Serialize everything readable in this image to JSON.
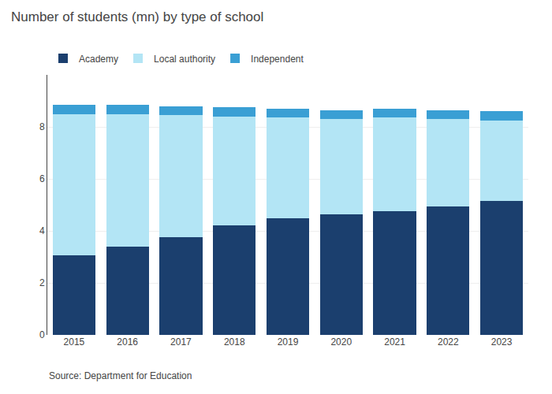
{
  "chart_data": {
    "type": "bar",
    "stacked": true,
    "title": "Number of students (mn) by type of school",
    "source": "Source: Department for Education",
    "categories": [
      "2015",
      "2016",
      "2017",
      "2018",
      "2019",
      "2020",
      "2021",
      "2022",
      "2023"
    ],
    "series": [
      {
        "name": "Academy",
        "color": "#1b3f6e",
        "values": [
          3.05,
          3.4,
          3.75,
          4.2,
          4.5,
          4.65,
          4.75,
          4.95,
          5.15
        ]
      },
      {
        "name": "Local authority",
        "color": "#b3e5f5",
        "values": [
          5.45,
          5.1,
          4.7,
          4.2,
          3.85,
          3.65,
          3.6,
          3.35,
          3.1
        ]
      },
      {
        "name": "Independent",
        "color": "#3a9fd4",
        "values": [
          0.35,
          0.35,
          0.35,
          0.35,
          0.35,
          0.35,
          0.35,
          0.35,
          0.35
        ]
      }
    ],
    "ylim": [
      0,
      10
    ],
    "yticks": [
      0,
      2,
      4,
      6,
      8
    ],
    "grid": true,
    "legend": "upper left"
  }
}
